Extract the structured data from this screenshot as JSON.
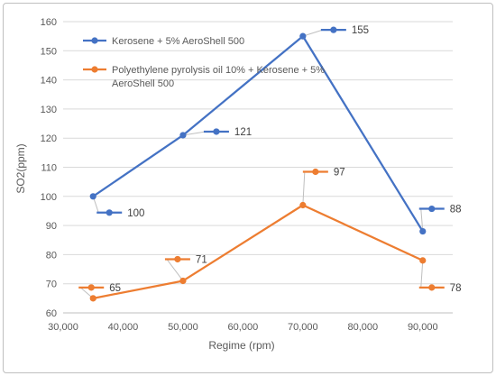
{
  "chart_data": {
    "type": "line",
    "xlabel": "Regime (rpm)",
    "ylabel": "SO2(ppm)",
    "xlim": [
      30000,
      95000
    ],
    "ylim": [
      60,
      160
    ],
    "x_ticks": [
      "30,000",
      "40,000",
      "50,000",
      "60,000",
      "70,000",
      "80,000",
      "90,000"
    ],
    "y_ticks": [
      "60",
      "70",
      "80",
      "90",
      "100",
      "110",
      "120",
      "130",
      "140",
      "150",
      "160"
    ],
    "grid": "horizontal",
    "legend_position": "top-left",
    "x": [
      35000,
      50000,
      70000,
      90000
    ],
    "series": [
      {
        "name": "Kerosene + 5% AeroShell 500",
        "color": "#4472c4",
        "values": [
          100,
          121,
          155,
          88
        ],
        "labels": [
          "100",
          "121",
          "155",
          "88"
        ]
      },
      {
        "name": "Polyethylene pyrolysis oil 10% + Kerosene + 5% AeroShell 500",
        "name_lines": [
          "Polyethylene pyrolysis oil 10% + Kerosene + 5%",
          "AeroShell 500"
        ],
        "color": "#ed7d31",
        "values": [
          65,
          71,
          97,
          78
        ],
        "labels": [
          "65",
          "71",
          "97",
          "78"
        ]
      }
    ]
  }
}
